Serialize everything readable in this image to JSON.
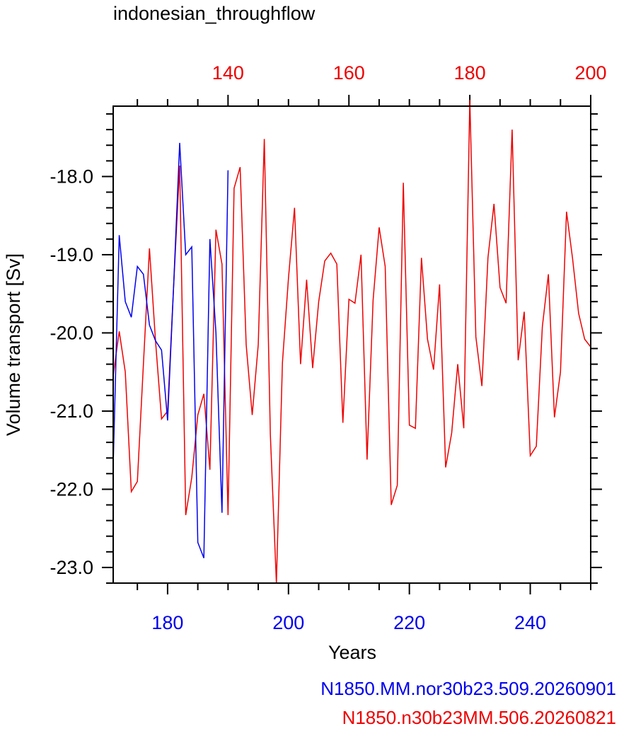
{
  "chart_data": {
    "type": "line",
    "title": "indonesian_throughflow",
    "xlabel": "Years",
    "ylabel": "Volume transport [Sv]",
    "ylim": [
      -23.2,
      -17.1
    ],
    "y_ticks": [
      -18.0,
      -19.0,
      -20.0,
      -21.0,
      -22.0,
      -23.0
    ],
    "y_tick_labels": [
      "-18.0",
      "-19.0",
      "-20.0",
      "-21.0",
      "-22.0",
      "-23.0"
    ],
    "bottom_axis": {
      "color": "#0000ee",
      "range": [
        171,
        250
      ],
      "ticks": [
        180,
        200,
        220,
        240
      ],
      "tick_labels": [
        "180",
        "200",
        "220",
        "240"
      ]
    },
    "top_axis": {
      "color": "#ee0000",
      "range": [
        121,
        200
      ],
      "ticks": [
        140,
        160,
        180,
        200
      ],
      "tick_labels": [
        "140",
        "160",
        "180",
        "200"
      ]
    },
    "series": [
      {
        "name": "N1850.MM.nor30b23.509.20260901",
        "color": "#0000ee",
        "axis": "bottom",
        "x": [
          171,
          172,
          173,
          174,
          175,
          176,
          177,
          178,
          179,
          180,
          181,
          182,
          183,
          184,
          185,
          186,
          187,
          188,
          189,
          190
        ],
        "y": [
          -21.7,
          -18.75,
          -19.6,
          -19.8,
          -19.15,
          -19.25,
          -19.9,
          -20.1,
          -20.22,
          -21.12,
          -19.4,
          -17.57,
          -19.0,
          -18.9,
          -22.68,
          -22.88,
          -18.8,
          -20.0,
          -22.3,
          -17.92
        ]
      },
      {
        "name": "N1850.n30b23MM.506.20260821",
        "color": "#ee0000",
        "axis": "top",
        "x": [
          121,
          122,
          123,
          124,
          125,
          126,
          127,
          128,
          129,
          130,
          131,
          132,
          133,
          134,
          135,
          136,
          137,
          138,
          139,
          140,
          141,
          142,
          143,
          144,
          145,
          146,
          147,
          148,
          149,
          150,
          151,
          152,
          153,
          154,
          155,
          156,
          157,
          158,
          159,
          160,
          161,
          162,
          163,
          164,
          165,
          166,
          167,
          168,
          169,
          170,
          171,
          172,
          173,
          174,
          175,
          176,
          177,
          178,
          179,
          180,
          181,
          182,
          183,
          184,
          185,
          186,
          187,
          188,
          189,
          190,
          191,
          192,
          193,
          194,
          195,
          196,
          197,
          198,
          199,
          200
        ],
        "y": [
          -20.55,
          -19.98,
          -20.5,
          -22.03,
          -21.9,
          -20.4,
          -18.92,
          -20.1,
          -21.1,
          -21.0,
          -19.4,
          -17.86,
          -22.33,
          -21.85,
          -21.05,
          -20.78,
          -21.75,
          -18.68,
          -19.12,
          -22.33,
          -18.15,
          -17.88,
          -20.15,
          -21.05,
          -20.15,
          -17.52,
          -21.3,
          -23.2,
          -20.38,
          -19.3,
          -18.4,
          -20.4,
          -19.32,
          -20.45,
          -19.6,
          -19.08,
          -18.98,
          -19.12,
          -21.15,
          -19.57,
          -19.62,
          -19.0,
          -21.62,
          -19.58,
          -18.65,
          -19.15,
          -22.2,
          -21.95,
          -18.08,
          -21.18,
          -21.22,
          -19.04,
          -20.08,
          -20.47,
          -19.38,
          -21.72,
          -21.28,
          -20.4,
          -21.22,
          -17.02,
          -20.05,
          -20.68,
          -19.04,
          -18.35,
          -19.42,
          -19.62,
          -17.4,
          -20.35,
          -19.73,
          -21.57,
          -21.45,
          -19.92,
          -19.25,
          -21.08,
          -20.5,
          -18.45,
          -19.05,
          -19.75,
          -20.08,
          -20.18
        ]
      }
    ],
    "legend_placement": "bottom-right",
    "grid": false
  }
}
